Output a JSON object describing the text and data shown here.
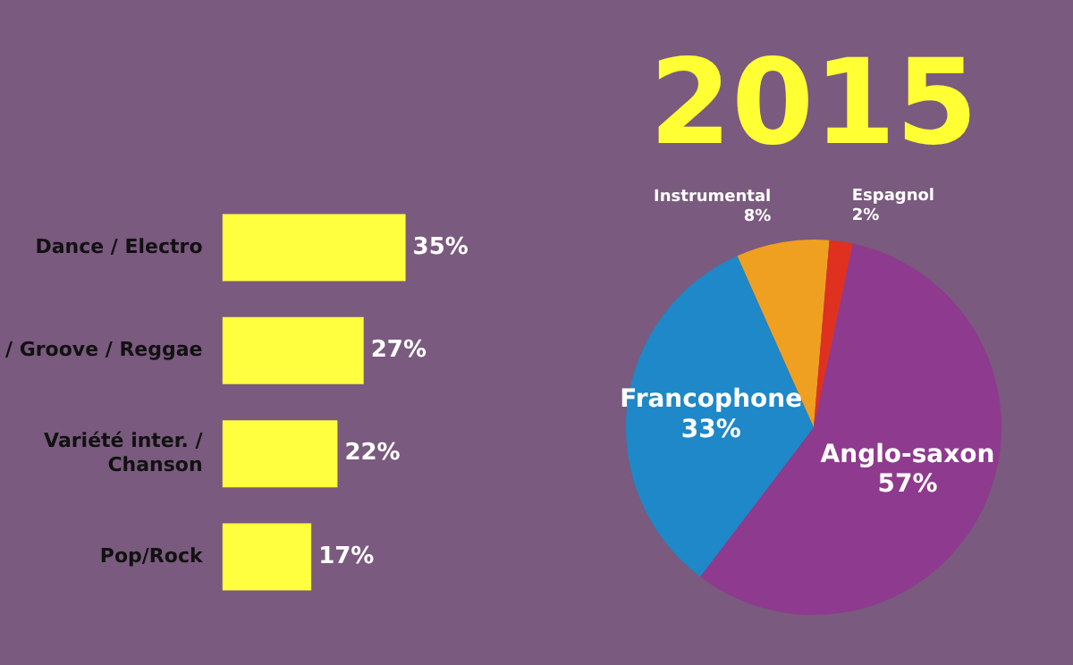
{
  "chart_data": [
    {
      "type": "bar",
      "orientation": "horizontal",
      "categories": [
        "Dance / Electro",
        "/ Groove / Reggae",
        "Variété inter. / Chanson",
        "Pop/Rock"
      ],
      "values": [
        35,
        27,
        22,
        17
      ],
      "value_labels": [
        "35%",
        "27%",
        "22%",
        "17%"
      ],
      "color": "#ffff40",
      "legend": false,
      "tick_labels": "y"
    },
    {
      "type": "pie",
      "title": "2015",
      "categories": [
        "Anglo-saxon",
        "Francophone",
        "Instrumental",
        "Espagnol"
      ],
      "values": [
        57,
        33,
        8,
        2
      ],
      "value_labels": [
        "57%",
        "33%",
        "8%",
        "2%"
      ],
      "colors": [
        "#8e3a8e",
        "#1e88c8",
        "#f0a020",
        "#e03020"
      ],
      "legend": false
    }
  ]
}
